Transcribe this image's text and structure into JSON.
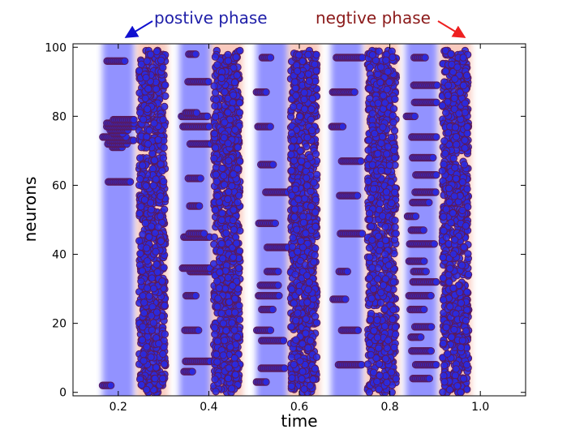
{
  "chart_data": {
    "type": "scatter",
    "title": "",
    "xlabel": "time",
    "ylabel": "neurons",
    "xlim": [
      0.1,
      1.1
    ],
    "ylim": [
      -1,
      101
    ],
    "xticks": [
      0.2,
      0.4,
      0.6,
      0.8,
      1.0
    ],
    "xtick_labels": [
      "0.2",
      "0.4",
      "0.6",
      "0.8",
      "1.0"
    ],
    "yticks": [
      0,
      20,
      40,
      60,
      80,
      100
    ],
    "ytick_labels": [
      "0",
      "20",
      "40",
      "60",
      "80",
      "100"
    ],
    "phases": [
      {
        "type": "positive",
        "start": 0.165,
        "end": 0.235
      },
      {
        "type": "negative",
        "start": 0.24,
        "end": 0.31
      },
      {
        "type": "positive",
        "start": 0.335,
        "end": 0.405
      },
      {
        "type": "negative",
        "start": 0.405,
        "end": 0.475
      },
      {
        "type": "positive",
        "start": 0.505,
        "end": 0.575
      },
      {
        "type": "negative",
        "start": 0.575,
        "end": 0.645
      },
      {
        "type": "positive",
        "start": 0.67,
        "end": 0.74
      },
      {
        "type": "negative",
        "start": 0.745,
        "end": 0.82
      },
      {
        "type": "positive",
        "start": 0.835,
        "end": 0.905
      },
      {
        "type": "negative",
        "start": 0.91,
        "end": 0.98
      }
    ],
    "positive_lines": [
      {
        "y": [
          2,
          61,
          71,
          72,
          73,
          74,
          75,
          76,
          77,
          78,
          79,
          96
        ]
      },
      {
        "y": [
          6,
          9,
          18,
          28,
          35,
          36,
          45,
          46,
          54,
          62,
          72,
          77,
          80,
          81,
          90,
          98
        ]
      },
      {
        "y": [
          3,
          7,
          15,
          18,
          24,
          28,
          31,
          35,
          42,
          49,
          58,
          66,
          77,
          87,
          97
        ]
      },
      {
        "y": [
          8,
          18,
          27,
          35,
          46,
          57,
          67,
          77,
          87,
          97
        ]
      },
      {
        "y": [
          4,
          8,
          12,
          16,
          19,
          24,
          28,
          32,
          35,
          38,
          43,
          47,
          51,
          55,
          58,
          63,
          68,
          74,
          80,
          84,
          89,
          97
        ]
      }
    ],
    "annotations": [
      {
        "text": "postive phase",
        "color": "#1f1fa8"
      },
      {
        "text": "negtive phase",
        "color": "#8b1a1a"
      }
    ],
    "colors": {
      "marker_fill": "#2a2ae0",
      "marker_edge": "#5a1a5a",
      "positive_band": "#7f7fff",
      "negative_band": "#f5a08a",
      "arrow_positive": "#1010d0",
      "arrow_negative": "#ee2020"
    }
  }
}
